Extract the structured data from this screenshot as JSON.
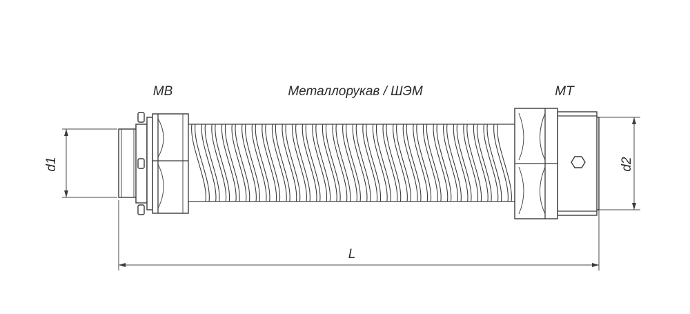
{
  "labels": {
    "left_fitting": "МВ",
    "hose": "Металлорукав / ШЭМ",
    "right_fitting": "МТ",
    "dim_d1": "d1",
    "dim_d2": "d2",
    "dim_length": "L"
  },
  "colors": {
    "line": "#3a3a3a",
    "background": "#ffffff"
  }
}
